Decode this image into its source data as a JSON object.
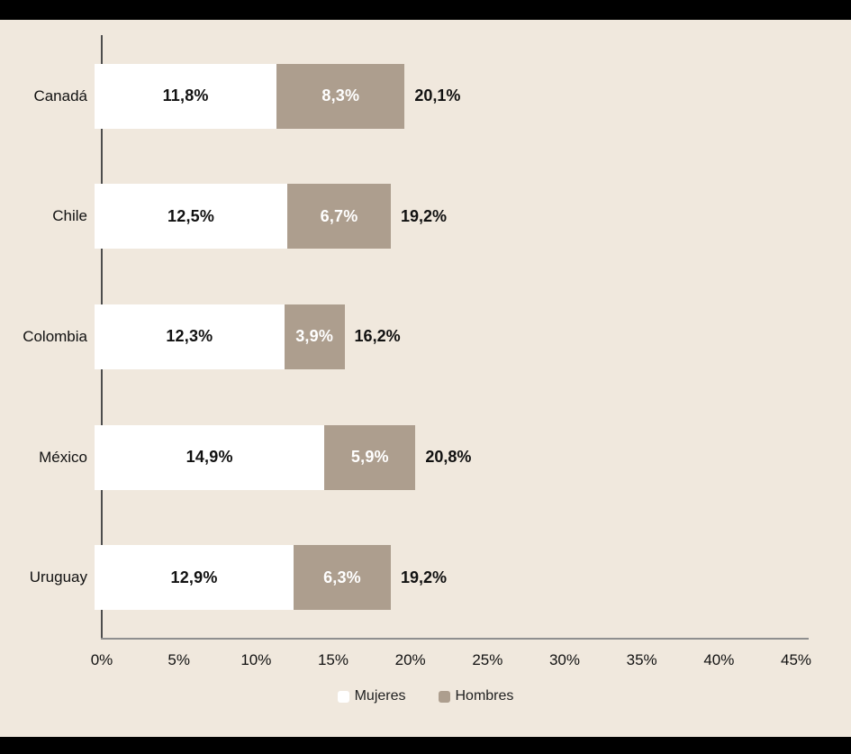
{
  "page": {
    "background_color": "#f0e8dd",
    "band_color": "#000000"
  },
  "chart_data": {
    "type": "bar",
    "orientation": "horizontal",
    "stacked": true,
    "title": "",
    "xlabel": "",
    "ylabel": "",
    "categories": [
      "Canadá",
      "Chile",
      "Colombia",
      "México",
      "Uruguay"
    ],
    "series": [
      {
        "name": "Mujeres",
        "color": "#ffffff",
        "label_color": "#111111",
        "values": [
          11.8,
          12.5,
          12.3,
          14.9,
          12.9
        ],
        "labels": [
          "11,8%",
          "12,5%",
          "12,3%",
          "14,9%",
          "12,9%"
        ]
      },
      {
        "name": "Hombres",
        "color": "#ad9e8e",
        "label_color": "#ffffff",
        "values": [
          8.3,
          6.7,
          3.9,
          5.9,
          6.3
        ],
        "labels": [
          "8,3%",
          "6,7%",
          "3,9%",
          "5,9%",
          "6,3%"
        ]
      }
    ],
    "totals": {
      "values": [
        20.1,
        19.2,
        16.2,
        20.8,
        19.2
      ],
      "labels": [
        "20,1%",
        "19,2%",
        "16,2%",
        "20,8%",
        "19,2%"
      ]
    },
    "x_axis": {
      "min": 0,
      "max": 45,
      "tick_step": 5,
      "tick_labels": [
        "0%",
        "5%",
        "10%",
        "15%",
        "20%",
        "25%",
        "30%",
        "35%",
        "40%",
        "45%"
      ]
    },
    "legend": {
      "position": "bottom",
      "items": [
        "Mujeres",
        "Hombres"
      ]
    },
    "grid": false
  }
}
